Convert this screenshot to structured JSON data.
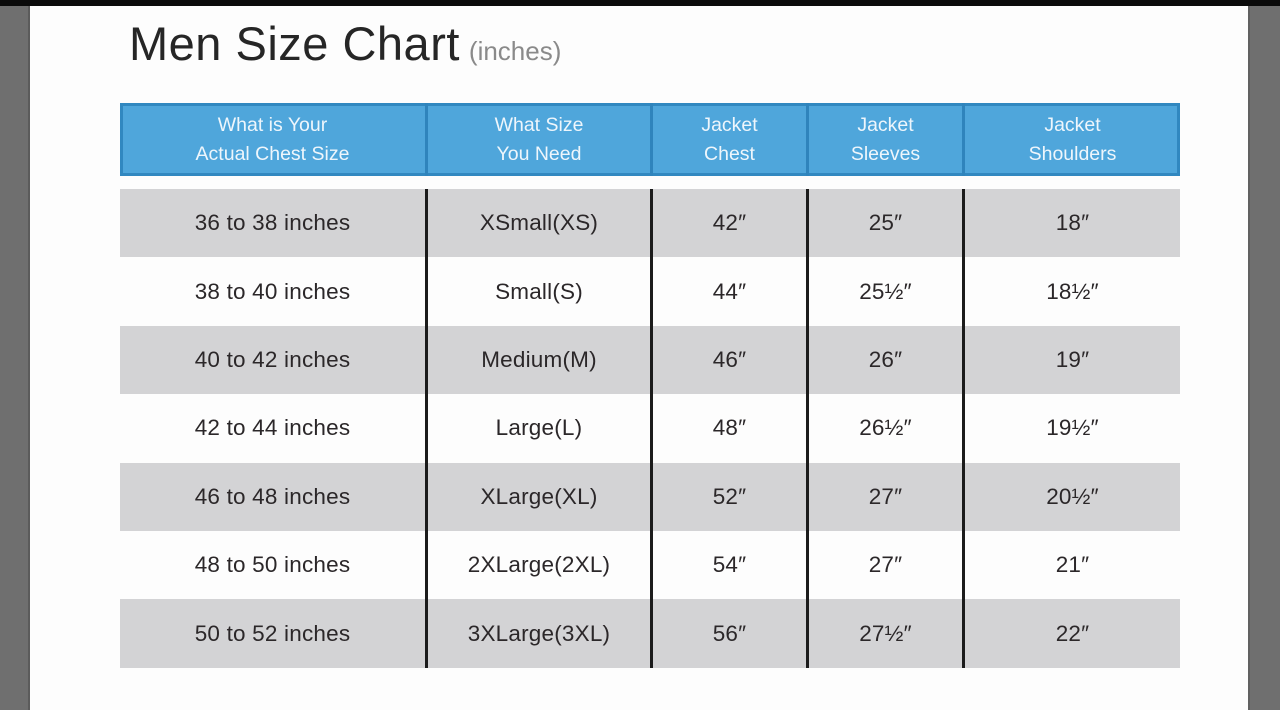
{
  "page": {
    "title": "Men Size Chart",
    "subtitle": "(inches)"
  },
  "table": {
    "headers": [
      {
        "line1": "What is Your",
        "line2": "Actual Chest Size"
      },
      {
        "line1": "What Size",
        "line2": "You Need"
      },
      {
        "line1": "Jacket",
        "line2": "Chest"
      },
      {
        "line1": "Jacket",
        "line2": "Sleeves"
      },
      {
        "line1": "Jacket",
        "line2": "Shoulders"
      }
    ],
    "rows": [
      [
        "36 to 38 inches",
        "XSmall(XS)",
        "42″",
        "25″",
        "18″"
      ],
      [
        "38 to 40 inches",
        "Small(S)",
        "44″",
        "25½″",
        "18½″"
      ],
      [
        "40 to 42 inches",
        "Medium(M)",
        "46″",
        "26″",
        "19″"
      ],
      [
        "42 to 44 inches",
        "Large(L)",
        "48″",
        "26½″",
        "19½″"
      ],
      [
        "46 to 48 inches",
        "XLarge(XL)",
        "52″",
        "27″",
        "20½″"
      ],
      [
        "48 to 50 inches",
        "2XLarge(2XL)",
        "54″",
        "27″",
        "21″"
      ],
      [
        "50 to 52 inches",
        "3XLarge(3XL)",
        "56″",
        "27½″",
        "22″"
      ]
    ]
  },
  "colors": {
    "header_fill": "#4FA6DB",
    "header_border": "#3188C0",
    "header_text": "#EEF6FC",
    "row_gray": "#D3D3D5",
    "row_white": "#FDFDFD",
    "body_divider": "#1C1C1C",
    "body_text": "#2B2729",
    "frame_gray": "#6F6F6F",
    "top_bar": "#0B0B0B",
    "subtitle_gray": "#8A8A8A"
  }
}
